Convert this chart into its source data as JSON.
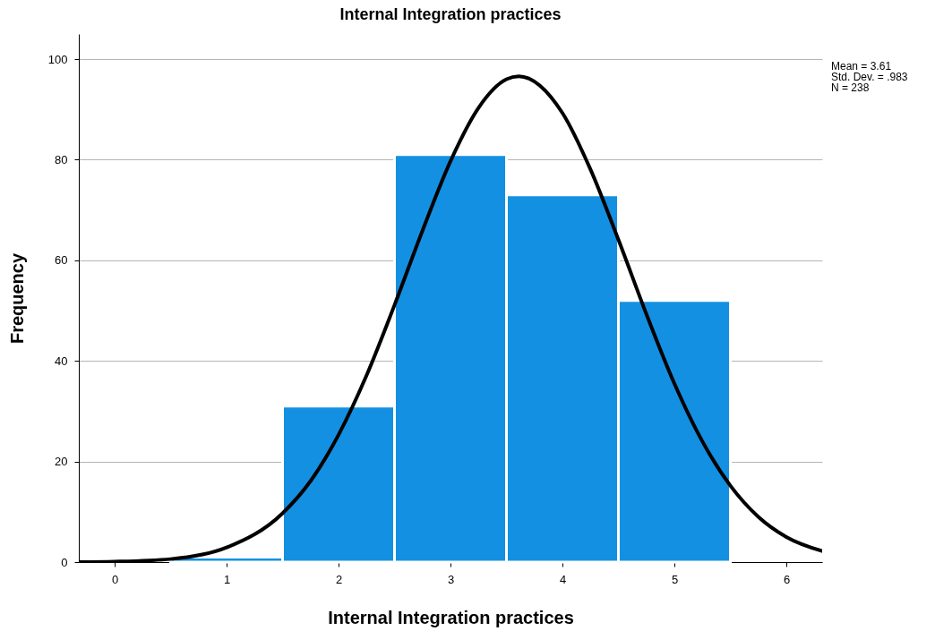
{
  "chart_data": {
    "type": "histogram",
    "title": "Internal Integration practices",
    "xlabel": "Internal Integration practices",
    "ylabel": "Frequency",
    "bins": [
      0.5,
      1.5,
      2.5,
      3.5,
      4.5,
      5.5
    ],
    "values": [
      1,
      31,
      81,
      73,
      52
    ],
    "color": "#1490e2",
    "series": [
      {
        "type": "line",
        "color": "#000000",
        "x": [
          -0.32,
          0,
          0.5,
          1,
          1.5,
          1.75,
          2,
          2.25,
          2.5,
          2.75,
          3,
          3.25,
          3.5,
          3.61,
          4,
          4.25,
          4.5,
          4.75,
          5,
          5.25,
          5.5,
          5.75,
          6,
          6.32
        ],
        "values": [
          0,
          0.1,
          0.6,
          2.9,
          9.7,
          16.1,
          25.3,
          37.1,
          51.1,
          65.9,
          79.7,
          90.3,
          96.0,
          96.6,
          89.3,
          78.1,
          64.1,
          49.3,
          35.5,
          24.0,
          15.2,
          9.0,
          5.0,
          2.2
        ]
      }
    ],
    "xlim": [
      -0.32,
      6.32
    ],
    "xticks": [
      0,
      1,
      2,
      3,
      4,
      5,
      6
    ],
    "ylim": [
      0,
      105
    ],
    "yticks": [
      0,
      20,
      40,
      60,
      80,
      100
    ],
    "grid": "y",
    "annotations": [
      "Mean = 3.61",
      "Std. Dev. = .983",
      "N = 238"
    ]
  }
}
